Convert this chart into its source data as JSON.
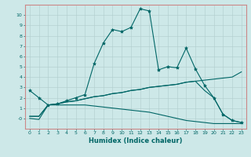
{
  "xlabel": "Humidex (Indice chaleur)",
  "bg_color": "#cde8e8",
  "grid_color": "#b0cccc",
  "line_color": "#006666",
  "spine_color": "#cc6666",
  "xlim": [
    -0.5,
    23.5
  ],
  "ylim": [
    -1.0,
    11.0
  ],
  "xticks": [
    0,
    1,
    2,
    3,
    4,
    5,
    6,
    7,
    8,
    9,
    10,
    11,
    12,
    13,
    14,
    15,
    16,
    17,
    18,
    19,
    20,
    21,
    22,
    23
  ],
  "yticks": [
    0,
    1,
    2,
    3,
    4,
    5,
    6,
    7,
    8,
    9,
    10
  ],
  "ytick_labels": [
    "-0",
    "1",
    "2",
    "3",
    "4",
    "5",
    "6",
    "7",
    "8",
    "9",
    "10"
  ],
  "line1_x": [
    0,
    1,
    2,
    3,
    4,
    5,
    6,
    7,
    8,
    9,
    10,
    11,
    12,
    13,
    14,
    15,
    16,
    17,
    18,
    19,
    20,
    21,
    22,
    23
  ],
  "line1_y": [
    2.7,
    2.0,
    1.3,
    1.4,
    1.7,
    2.0,
    2.3,
    5.3,
    7.3,
    8.6,
    8.4,
    8.8,
    10.6,
    10.4,
    4.7,
    5.0,
    4.9,
    6.8,
    4.8,
    3.2,
    2.0,
    0.4,
    -0.2,
    -0.4
  ],
  "line2_x": [
    0,
    1,
    2,
    3,
    4,
    5,
    6,
    7,
    8,
    9,
    10,
    11,
    12,
    13,
    14,
    15,
    16,
    17,
    18,
    19,
    20,
    21,
    22,
    23
  ],
  "line2_y": [
    0.2,
    0.2,
    1.3,
    1.4,
    1.6,
    1.7,
    1.9,
    2.1,
    2.2,
    2.4,
    2.5,
    2.7,
    2.8,
    3.0,
    3.1,
    3.2,
    3.3,
    3.5,
    3.6,
    3.7,
    3.8,
    3.9,
    4.0,
    4.5
  ],
  "line3_x": [
    0,
    1,
    2,
    3,
    4,
    5,
    6,
    7,
    8,
    9,
    10,
    11,
    12,
    13,
    14,
    15,
    16,
    17,
    18,
    19,
    20,
    21,
    22,
    23
  ],
  "line3_y": [
    0.2,
    0.2,
    1.3,
    1.4,
    1.6,
    1.7,
    1.9,
    2.1,
    2.2,
    2.4,
    2.5,
    2.7,
    2.8,
    3.0,
    3.1,
    3.2,
    3.3,
    3.5,
    3.6,
    2.7,
    2.0,
    0.4,
    -0.2,
    -0.4
  ],
  "line4_x": [
    0,
    1,
    2,
    3,
    4,
    5,
    6,
    7,
    8,
    9,
    10,
    11,
    12,
    13,
    14,
    15,
    16,
    17,
    18,
    19,
    20,
    21,
    22,
    23
  ],
  "line4_y": [
    0.0,
    -0.1,
    1.3,
    1.3,
    1.3,
    1.3,
    1.3,
    1.2,
    1.1,
    1.0,
    0.9,
    0.8,
    0.7,
    0.6,
    0.4,
    0.2,
    0.0,
    -0.2,
    -0.3,
    -0.4,
    -0.5,
    -0.5,
    -0.5,
    -0.5
  ]
}
